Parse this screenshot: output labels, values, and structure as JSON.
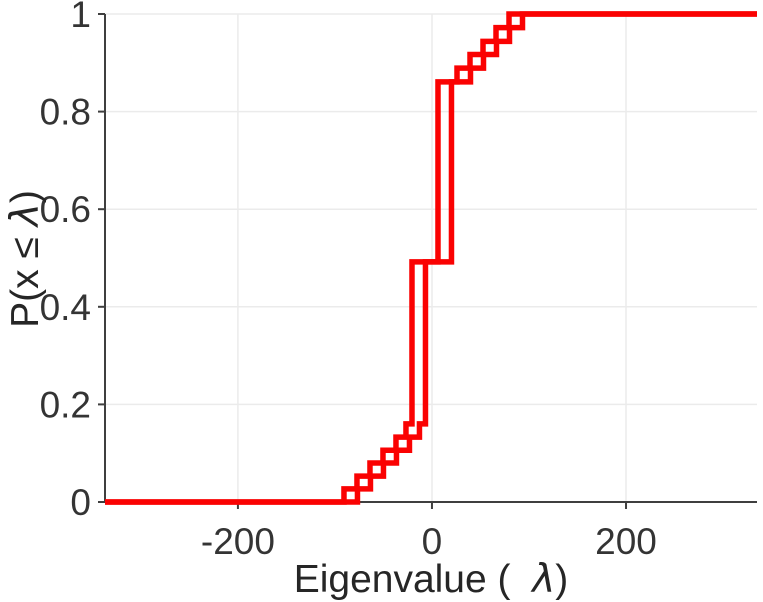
{
  "figure": {
    "background": "#ffffff"
  },
  "chart_data": {
    "type": "line",
    "subtype": "ecdf-step-stairs",
    "title": "",
    "xlabel": "Eigenvalue (  λ)",
    "ylabel": "P(x ≤ λ)",
    "xlabel_parts": {
      "pre": "Eigenvalue (  ",
      "lambda": "λ",
      "post": ")"
    },
    "ylabel_parts": {
      "pre": "P(x ≤ ",
      "lambda": "λ",
      "post": ")"
    },
    "xlim": [
      -337,
      335
    ],
    "ylim": [
      0,
      1
    ],
    "xticks": {
      "values": [
        -200,
        0,
        200
      ],
      "labels": [
        "-200",
        "0",
        "200"
      ]
    },
    "yticks": {
      "values": [
        0,
        0.2,
        0.4,
        0.6,
        0.8,
        1
      ],
      "labels": [
        "0",
        "0.2",
        "0.4",
        "0.6",
        "0.8",
        "1"
      ]
    },
    "grid": true,
    "legend_position": "none",
    "line_color": "#fa0202",
    "grid_color": "#ebebeb",
    "axis_color": "#3f3f3f",
    "tick_label_color": "#343434",
    "label_color": "#262626",
    "series": [
      {
        "name": "eigenvalue-ecdf-curve-1",
        "start_p": 0,
        "jumps": [
          [
            -90.7,
            0.027
          ],
          [
            -77.3,
            0.053
          ],
          [
            -63.9,
            0.08
          ],
          [
            -50.5,
            0.106
          ],
          [
            -37.1,
            0.133
          ],
          [
            -26.8,
            0.16
          ],
          [
            -20.6,
            0.492
          ],
          [
            6.2,
            0.861
          ],
          [
            25.8,
            0.889
          ],
          [
            39.2,
            0.917
          ],
          [
            52.6,
            0.944
          ],
          [
            66.0,
            0.972
          ],
          [
            79.4,
            1.0
          ]
        ]
      },
      {
        "name": "eigenvalue-ecdf-curve-2",
        "start_p": 0,
        "jumps": [
          [
            -76.8,
            0.027
          ],
          [
            -63.4,
            0.053
          ],
          [
            -50.0,
            0.08
          ],
          [
            -36.6,
            0.106
          ],
          [
            -23.2,
            0.133
          ],
          [
            -12.9,
            0.16
          ],
          [
            -6.7,
            0.492
          ],
          [
            20.1,
            0.861
          ],
          [
            39.7,
            0.889
          ],
          [
            53.1,
            0.917
          ],
          [
            66.5,
            0.944
          ],
          [
            79.9,
            0.972
          ],
          [
            93.3,
            1.0
          ]
        ]
      }
    ]
  }
}
